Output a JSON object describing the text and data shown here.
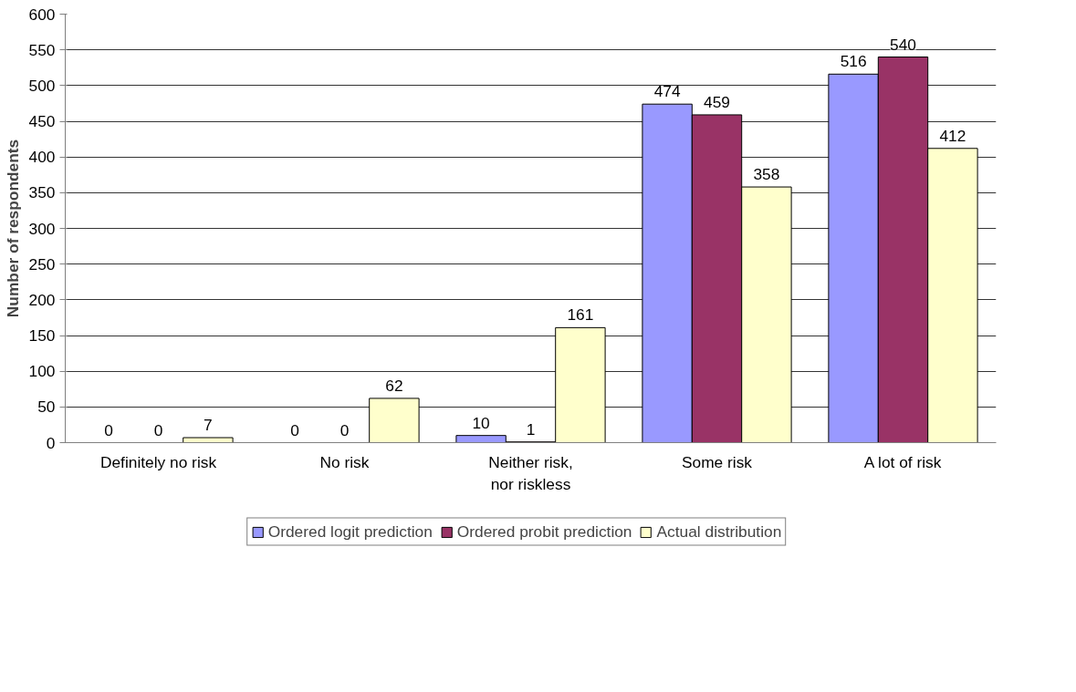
{
  "chart_data": {
    "type": "bar",
    "ylabel": "Number of respondents",
    "categories": [
      "Definitely no risk",
      "No risk",
      "Neither risk, nor riskless",
      "Some risk",
      "A lot of risk"
    ],
    "series": [
      {
        "name": "Ordered logit prediction",
        "color": "#9999ff",
        "values": [
          0,
          0,
          10,
          474,
          516
        ]
      },
      {
        "name": "Ordered probit prediction",
        "color": "#993366",
        "values": [
          0,
          0,
          1,
          459,
          540
        ]
      },
      {
        "name": "Actual distribution",
        "color": "#ffffcc",
        "values": [
          7,
          62,
          161,
          358,
          412
        ]
      }
    ],
    "ylim": [
      0,
      600
    ],
    "yticks": [
      0,
      50,
      100,
      150,
      200,
      250,
      300,
      350,
      400,
      450,
      500,
      550,
      600
    ],
    "grid": "y",
    "legend": "bottom",
    "data_labels": true
  }
}
